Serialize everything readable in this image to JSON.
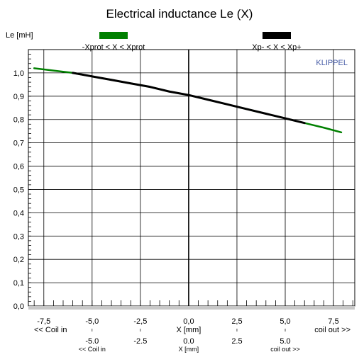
{
  "chart_data": {
    "type": "line",
    "title": "Electrical inductance Le (X)",
    "ylabel": "Le [mH]",
    "xlabel": "X [mm]",
    "xlim": [
      -8.3,
      8.6
    ],
    "ylim": [
      0.0,
      1.1
    ],
    "grid": true,
    "x_ticks": [
      -7.5,
      -5.0,
      -2.5,
      0.0,
      2.5,
      5.0,
      7.5
    ],
    "x_tick_labels": [
      "-7,5",
      "-5,0",
      "-2,5",
      "0,0",
      "2,5",
      "5,0",
      "7,5"
    ],
    "y_ticks": [
      0.0,
      0.1,
      0.2,
      0.3,
      0.4,
      0.5,
      0.6,
      0.7,
      0.8,
      0.9,
      1.0
    ],
    "y_tick_labels": [
      "0,0",
      "0,1",
      "0,2",
      "0,3",
      "0,4",
      "0,5",
      "0,6",
      "0,7",
      "0,8",
      "0,9",
      "1,0"
    ],
    "x_caption_left": "<< Coil in",
    "x_caption_right": "coil out >>",
    "secondary_x_ticks": [
      -5.0,
      -2.5,
      0.0,
      2.5,
      5.0
    ],
    "secondary_x_tick_labels": [
      "-5.0",
      "-2.5",
      "0.0",
      "2.5",
      "5.0"
    ],
    "secondary_caption_left": "<< Coil in",
    "secondary_caption_center": "X [mm]",
    "secondary_caption_right": "coil out >>",
    "brand": "KLIPPEL",
    "legend_placement": "top",
    "series": [
      {
        "name": "-Xprot < X < Xprot",
        "color": "#008000",
        "x": [
          -8.0,
          -7.0,
          -6.0,
          -5.0,
          -4.0,
          -3.0,
          -2.0,
          -1.0,
          0.0,
          1.0,
          2.0,
          3.0,
          4.0,
          5.0,
          6.0,
          7.0,
          7.9
        ],
        "values": [
          1.02,
          1.01,
          1.0,
          0.985,
          0.97,
          0.955,
          0.94,
          0.92,
          0.905,
          0.885,
          0.865,
          0.845,
          0.825,
          0.805,
          0.785,
          0.765,
          0.745
        ]
      },
      {
        "name": "Xp- < X < Xp+",
        "color": "#000000",
        "x": [
          -6.0,
          -5.0,
          -4.0,
          -3.0,
          -2.0,
          -1.0,
          0.0,
          1.0,
          2.0,
          3.0,
          4.0,
          5.0,
          6.0
        ],
        "values": [
          1.0,
          0.985,
          0.97,
          0.955,
          0.94,
          0.92,
          0.905,
          0.885,
          0.865,
          0.845,
          0.825,
          0.805,
          0.785
        ]
      }
    ]
  }
}
